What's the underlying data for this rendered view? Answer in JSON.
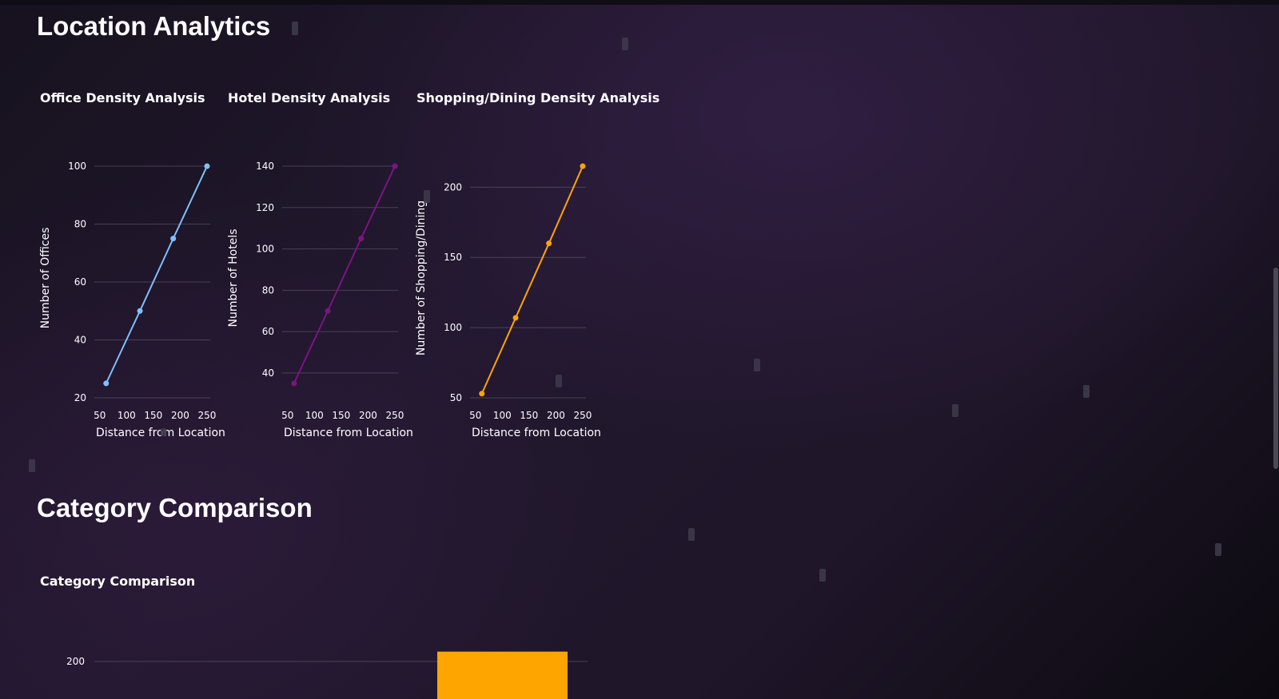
{
  "sections": {
    "location_analytics": "Location Analytics",
    "category_comparison": "Category Comparison"
  },
  "charts": {
    "office": {
      "title": "Office Density Analysis",
      "ylabel": "Number of Offices",
      "xlabel": "Distance from Location",
      "color": "#7ec1ff"
    },
    "hotel": {
      "title": "Hotel Density Analysis",
      "ylabel": "Number of Hotels",
      "xlabel": "Distance from Location",
      "color": "#7a1583"
    },
    "shopping": {
      "title": "Shopping/Dining Density Analysis",
      "ylabel": "Number of Shopping/Dining",
      "xlabel": "Distance from Location",
      "color": "#ffa40a"
    },
    "category": {
      "title": "Category Comparison",
      "color": "#ffa500"
    }
  },
  "chart_data": [
    {
      "type": "line",
      "title": "Office Density Analysis",
      "xlabel": "Distance from Location",
      "ylabel": "Number of Offices",
      "x": [
        62,
        125,
        187,
        250
      ],
      "y": [
        25,
        50,
        75,
        100
      ],
      "xticks": [
        50,
        100,
        150,
        200,
        250
      ],
      "yticks": [
        20,
        40,
        60,
        80,
        100
      ],
      "xlim": [
        40,
        256
      ],
      "ylim": [
        20,
        100
      ],
      "grid": true
    },
    {
      "type": "line",
      "title": "Hotel Density Analysis",
      "xlabel": "Distance from Location",
      "ylabel": "Number of Hotels",
      "x": [
        62,
        125,
        187,
        250
      ],
      "y": [
        35,
        70,
        105,
        140
      ],
      "xticks": [
        50,
        100,
        150,
        200,
        250
      ],
      "yticks": [
        40,
        60,
        80,
        100,
        120,
        140
      ],
      "xlim": [
        40,
        256
      ],
      "ylim": [
        28,
        140
      ],
      "grid": true
    },
    {
      "type": "line",
      "title": "Shopping/Dining Density Analysis",
      "xlabel": "Distance from Location",
      "ylabel": "Number of Shopping/Dining",
      "x": [
        62,
        125,
        187,
        250
      ],
      "y": [
        53,
        107,
        160,
        215
      ],
      "xticks": [
        50,
        100,
        150,
        200,
        250
      ],
      "yticks": [
        50,
        100,
        150,
        200
      ],
      "xlim": [
        40,
        256
      ],
      "ylim": [
        50,
        215
      ],
      "grid": true
    },
    {
      "type": "bar",
      "title": "Category Comparison",
      "yticks": [
        200
      ],
      "bars": [
        {
          "top": 215
        }
      ],
      "grid": true
    }
  ]
}
